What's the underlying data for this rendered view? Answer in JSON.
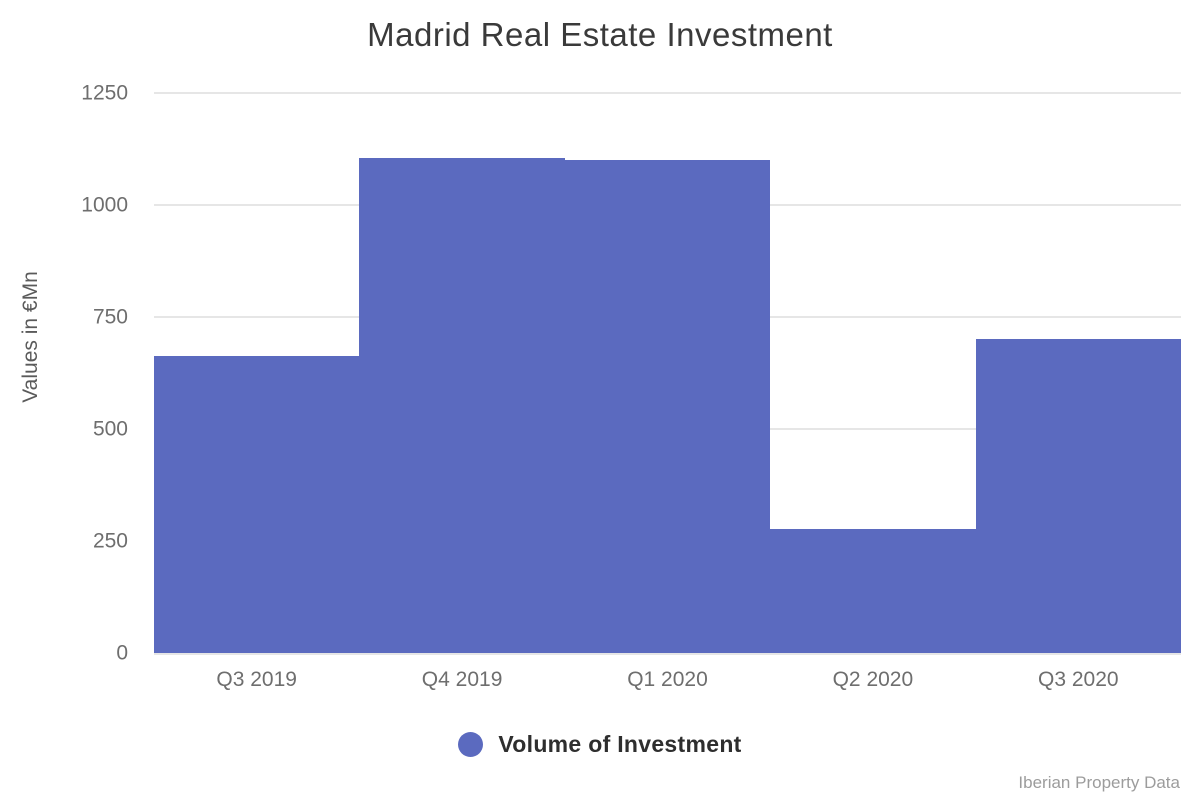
{
  "header": {
    "title": "Madrid Real Estate Investment"
  },
  "chart_data": {
    "type": "bar",
    "categories": [
      "Q3 2019",
      "Q4 2019",
      "Q1 2020",
      "Q2 2020",
      "Q3 2020"
    ],
    "series": [
      {
        "name": "Volume of Investment",
        "values": [
          663,
          1105,
          1100,
          277,
          700
        ]
      }
    ],
    "title": "Madrid Real Estate Investment",
    "xlabel": "",
    "ylabel": "Values in €Mn",
    "ylim": [
      0,
      1250
    ],
    "yticks": [
      0,
      250,
      500,
      750,
      1000,
      1250
    ],
    "grid": true,
    "legend_position": "bottom",
    "bar_gap": 0
  },
  "legend": {
    "label": "Volume of Investment"
  },
  "footer": {
    "source": "Iberian Property Data"
  },
  "colors": {
    "bar": "#5b6abf",
    "gridline": "#e6e6e6",
    "title_text": "#3a3a3a",
    "tick_text": "#6e6e6e",
    "legend_text": "#2e2e2e",
    "source_text": "#9c9c9c"
  }
}
